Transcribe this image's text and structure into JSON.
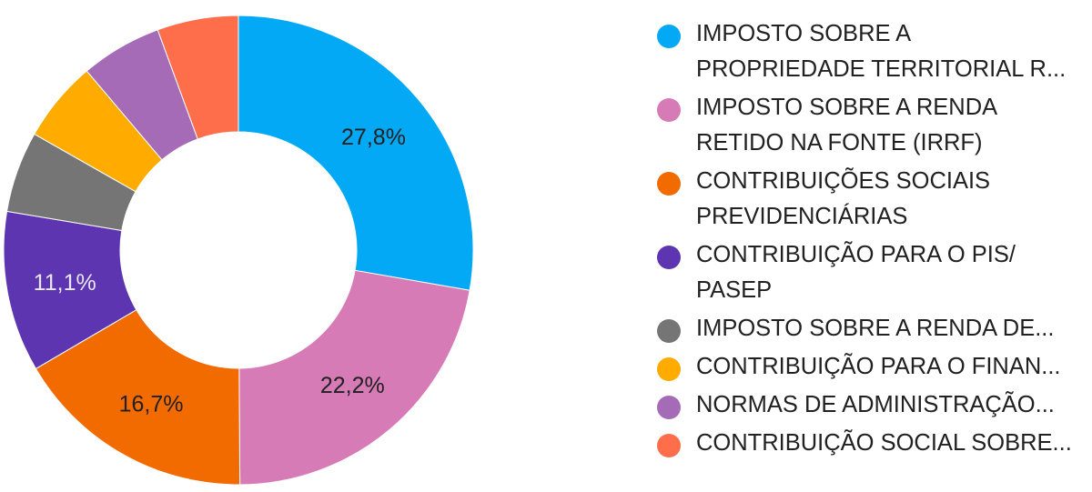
{
  "chart_data": {
    "type": "pie",
    "variant": "donut",
    "categories": [
      "IMPOSTO SOBRE A PROPRIEDADE TERRITORIAL R...",
      "IMPOSTO SOBRE A RENDA RETIDO NA FONTE (IRRF)",
      "CONTRIBUIÇÕES SOCIAIS PREVIDENCIÁRIAS",
      "CONTRIBUIÇÃO PARA O PIS/ PASEP",
      "IMPOSTO SOBRE A RENDA DE...",
      "CONTRIBUIÇÃO PARA O FINAN...",
      "NORMAS DE ADMINISTRAÇÃO...",
      "CONTRIBUIÇÃO SOCIAL SOBRE..."
    ],
    "values": [
      27.8,
      22.2,
      16.7,
      11.1,
      5.6,
      5.6,
      5.6,
      5.6
    ],
    "slice_labels": [
      "27,8%",
      "22,2%",
      "16,7%",
      "11,1%",
      "",
      "",
      "",
      ""
    ],
    "colors": [
      "#03A9F4",
      "#D77BB7",
      "#F26B00",
      "#5E35B1",
      "#757575",
      "#FFAB00",
      "#A66BB6",
      "#FF6E4A"
    ],
    "label_colors": [
      "#212121",
      "#212121",
      "#212121",
      "#E8E8F0",
      "",
      "",
      "",
      ""
    ],
    "start_angle_deg": 0,
    "direction": "clockwise",
    "legend_position": "right"
  },
  "legend": {
    "items": [
      {
        "label": "IMPOSTO SOBRE A\nPROPRIEDADE TERRITORIAL R...",
        "color": "#03A9F4"
      },
      {
        "label": "IMPOSTO SOBRE A RENDA\nRETIDO NA FONTE (IRRF)",
        "color": "#D77BB7"
      },
      {
        "label": "CONTRIBUIÇÕES SOCIAIS\nPREVIDENCIÁRIAS",
        "color": "#F26B00"
      },
      {
        "label": "CONTRIBUIÇÃO PARA O PIS/\nPASEP",
        "color": "#5E35B1"
      },
      {
        "label": "IMPOSTO SOBRE A RENDA DE...",
        "color": "#757575"
      },
      {
        "label": "CONTRIBUIÇÃO PARA O FINAN...",
        "color": "#FFAB00"
      },
      {
        "label": "NORMAS DE ADMINISTRAÇÃO...",
        "color": "#A66BB6"
      },
      {
        "label": "CONTRIBUIÇÃO SOCIAL SOBRE...",
        "color": "#FF6E4A"
      }
    ]
  }
}
